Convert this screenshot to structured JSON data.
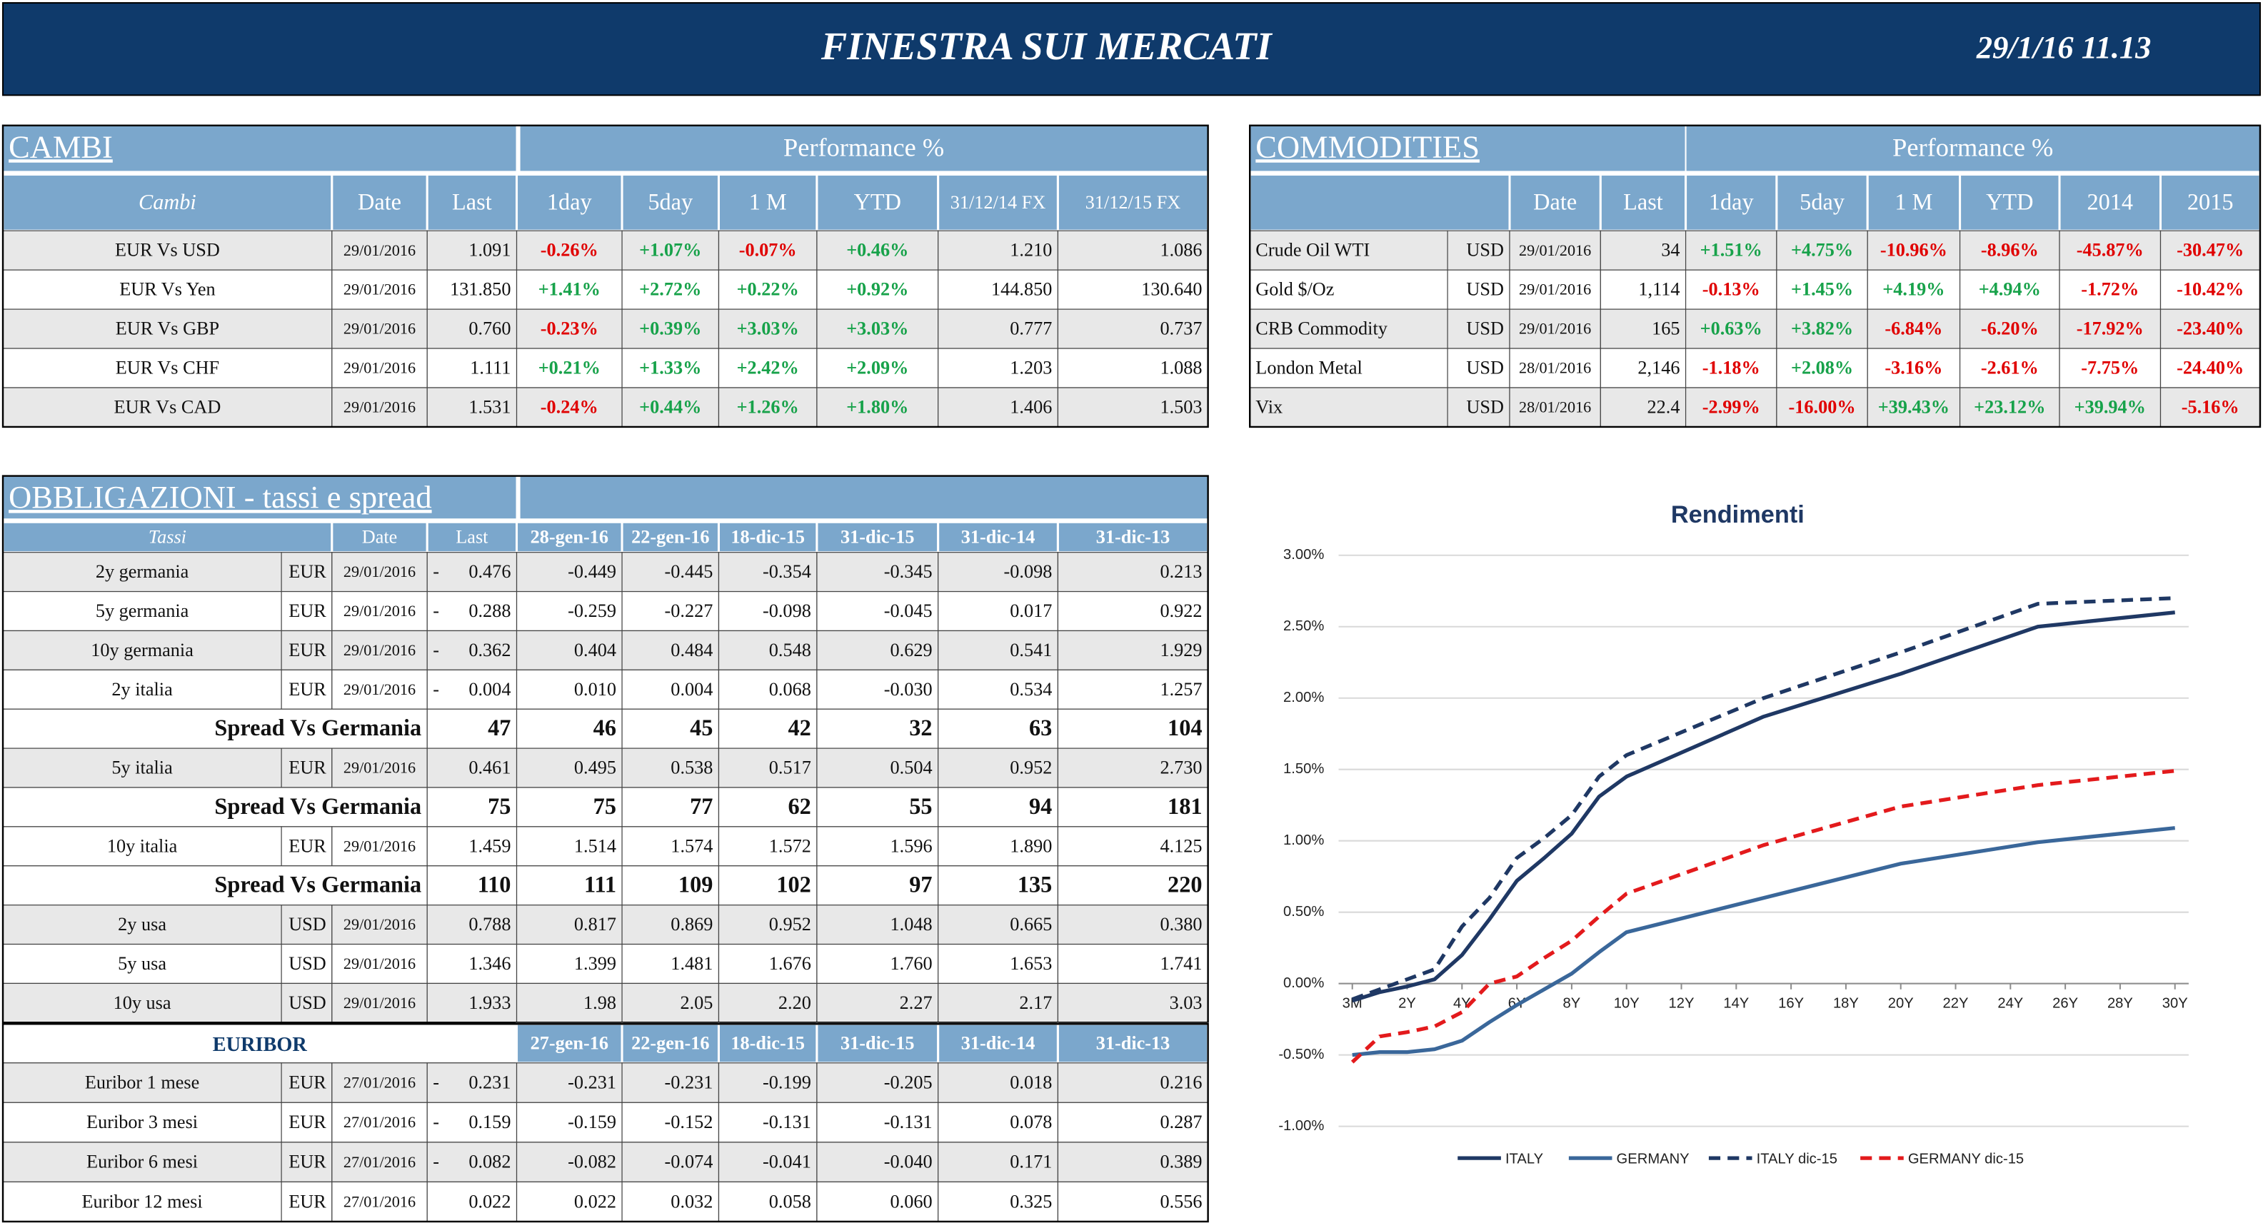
{
  "header": {
    "title": "FINESTRA SUI MERCATI",
    "timestamp": "29/1/16 11.13"
  },
  "cambi": {
    "title": "CAMBI",
    "performance": "Performance  %",
    "columns": [
      "Cambi",
      "Date",
      "Last",
      "1day",
      "5day",
      "1 M",
      "YTD",
      "31/12/14 FX",
      "31/12/15  FX"
    ],
    "rows": [
      [
        "EUR Vs USD",
        "29/01/2016",
        "1.091",
        "-0.26%",
        "+1.07%",
        "-0.07%",
        "+0.46%",
        "1.210",
        "1.086"
      ],
      [
        "EUR Vs Yen",
        "29/01/2016",
        "131.850",
        "+1.41%",
        "+2.72%",
        "+0.22%",
        "+0.92%",
        "144.850",
        "130.640"
      ],
      [
        "EUR Vs GBP",
        "29/01/2016",
        "0.760",
        "-0.23%",
        "+0.39%",
        "+3.03%",
        "+3.03%",
        "0.777",
        "0.737"
      ],
      [
        "EUR Vs CHF",
        "29/01/2016",
        "1.111",
        "+0.21%",
        "+1.33%",
        "+2.42%",
        "+2.09%",
        "1.203",
        "1.088"
      ],
      [
        "EUR Vs CAD",
        "29/01/2016",
        "1.531",
        "-0.24%",
        "+0.44%",
        "+1.26%",
        "+1.80%",
        "1.406",
        "1.503"
      ]
    ]
  },
  "commodities": {
    "title": "COMMODITIES",
    "performance": "Performance  %",
    "columns": [
      "Date",
      "Last",
      "1day",
      "5day",
      "1 M",
      "YTD",
      "2014",
      "2015"
    ],
    "rows": [
      [
        "Crude Oil WTI",
        "USD",
        "29/01/2016",
        "34",
        "+1.51%",
        "+4.75%",
        "-10.96%",
        "-8.96%",
        "-45.87%",
        "-30.47%"
      ],
      [
        "Gold $/Oz",
        "USD",
        "29/01/2016",
        "1,114",
        "-0.13%",
        "+1.45%",
        "+4.19%",
        "+4.94%",
        "-1.72%",
        "-10.42%"
      ],
      [
        "CRB Commodity",
        "USD",
        "29/01/2016",
        "165",
        "+0.63%",
        "+3.82%",
        "-6.84%",
        "-6.20%",
        "-17.92%",
        "-23.40%"
      ],
      [
        "London Metal",
        "USD",
        "28/01/2016",
        "2,146",
        "-1.18%",
        "+2.08%",
        "-3.16%",
        "-2.61%",
        "-7.75%",
        "-24.40%"
      ],
      [
        "Vix",
        "USD",
        "28/01/2016",
        "22.4",
        "-2.99%",
        "-16.00%",
        "+39.43%",
        "+23.12%",
        "+39.94%",
        "-5.16%"
      ]
    ]
  },
  "obbligazioni": {
    "title": "OBBLIGAZIONI - tassi e spread",
    "columns": [
      "Tassi",
      "Date",
      "Last",
      "28-gen-16",
      "22-gen-16",
      "18-dic-15",
      "31-dic-15",
      "31-dic-14",
      "31-dic-13"
    ],
    "rows": [
      {
        "name": "2y germania",
        "currency": "EUR",
        "date": "29/01/2016",
        "sign": "-",
        "last": "0.476",
        "values": [
          "-0.449",
          "-0.445",
          "-0.354",
          "-0.345",
          "-0.098",
          "0.213"
        ]
      },
      {
        "name": "5y germania",
        "currency": "EUR",
        "date": "29/01/2016",
        "sign": "-",
        "last": "0.288",
        "values": [
          "-0.259",
          "-0.227",
          "-0.098",
          "-0.045",
          "0.017",
          "0.922"
        ]
      },
      {
        "name": "10y germania",
        "currency": "EUR",
        "date": "29/01/2016",
        "sign": "-",
        "last": "0.362",
        "values": [
          "0.404",
          "0.484",
          "0.548",
          "0.629",
          "0.541",
          "1.929"
        ]
      },
      {
        "name": "2y italia",
        "currency": "EUR",
        "date": "29/01/2016",
        "sign": "-",
        "last": "0.004",
        "values": [
          "0.010",
          "0.004",
          "0.068",
          "-0.030",
          "0.534",
          "1.257"
        ]
      },
      {
        "label": "Spread Vs Germania",
        "last": "47",
        "values": [
          "46",
          "45",
          "42",
          "32",
          "63",
          "104"
        ]
      },
      {
        "name": "5y italia",
        "currency": "EUR",
        "date": "29/01/2016",
        "last": "0.461",
        "values": [
          "0.495",
          "0.538",
          "0.517",
          "0.504",
          "0.952",
          "2.730"
        ]
      },
      {
        "label": "Spread Vs Germania",
        "last": "75",
        "values": [
          "75",
          "77",
          "62",
          "55",
          "94",
          "181"
        ]
      },
      {
        "name": "10y italia",
        "currency": "EUR",
        "date": "29/01/2016",
        "last": "1.459",
        "values": [
          "1.514",
          "1.574",
          "1.572",
          "1.596",
          "1.890",
          "4.125"
        ]
      },
      {
        "label": "Spread Vs Germania",
        "last": "110",
        "values": [
          "111",
          "109",
          "102",
          "97",
          "135",
          "220"
        ]
      },
      {
        "name": "2y usa",
        "currency": "USD",
        "date": "29/01/2016",
        "last": "0.788",
        "values": [
          "0.817",
          "0.869",
          "0.952",
          "1.048",
          "0.665",
          "0.380"
        ]
      },
      {
        "name": "5y usa",
        "currency": "USD",
        "date": "29/01/2016",
        "last": "1.346",
        "values": [
          "1.399",
          "1.481",
          "1.676",
          "1.760",
          "1.653",
          "1.741"
        ]
      },
      {
        "name": "10y usa",
        "currency": "USD",
        "date": "29/01/2016",
        "last": "1.933",
        "values": [
          "1.98",
          "2.05",
          "2.20",
          "2.27",
          "2.17",
          "3.03"
        ]
      }
    ]
  },
  "euribor": {
    "title": "EURIBOR",
    "columns": [
      "27-gen-16",
      "22-gen-16",
      "18-dic-15",
      "31-dic-15",
      "31-dic-14",
      "31-dic-13"
    ],
    "rows": [
      {
        "name": "Euribor 1 mese",
        "currency": "EUR",
        "date": "27/01/2016",
        "sign": "-",
        "last": "0.231",
        "values": [
          "-0.231",
          "-0.231",
          "-0.199",
          "-0.205",
          "0.018",
          "0.216"
        ]
      },
      {
        "name": "Euribor 3 mesi",
        "currency": "EUR",
        "date": "27/01/2016",
        "sign": "-",
        "last": "0.159",
        "values": [
          "-0.159",
          "-0.152",
          "-0.131",
          "-0.131",
          "0.078",
          "0.287"
        ]
      },
      {
        "name": "Euribor 6 mesi",
        "currency": "EUR",
        "date": "27/01/2016",
        "sign": "-",
        "last": "0.082",
        "values": [
          "-0.082",
          "-0.074",
          "-0.041",
          "-0.040",
          "0.171",
          "0.389"
        ]
      },
      {
        "name": "Euribor 12 mesi",
        "currency": "EUR",
        "date": "27/01/2016",
        "last": "0.022",
        "values": [
          "0.022",
          "0.032",
          "0.058",
          "0.060",
          "0.325",
          "0.556"
        ]
      }
    ]
  },
  "chart": {
    "type": "line",
    "title": "Rendimenti",
    "x": [
      0,
      1,
      2,
      3,
      4,
      5,
      6,
      7,
      8,
      9,
      10,
      15,
      20,
      25,
      30
    ],
    "xlim": [
      -0.5,
      30.5
    ],
    "xticks": [
      {
        "value": 0,
        "label": "3M"
      },
      {
        "value": 2,
        "label": "2Y"
      },
      {
        "value": 4,
        "label": "4Y"
      },
      {
        "value": 6,
        "label": "6Y"
      },
      {
        "value": 8,
        "label": "8Y"
      },
      {
        "value": 10,
        "label": "10Y"
      },
      {
        "value": 12,
        "label": "12Y"
      },
      {
        "value": 14,
        "label": "14Y"
      },
      {
        "value": 16,
        "label": "16Y"
      },
      {
        "value": 18,
        "label": "18Y"
      },
      {
        "value": 20,
        "label": "20Y"
      },
      {
        "value": 22,
        "label": "22Y"
      },
      {
        "value": 24,
        "label": "24Y"
      },
      {
        "value": 26,
        "label": "26Y"
      },
      {
        "value": 28,
        "label": "28Y"
      },
      {
        "value": 30,
        "label": "30Y"
      }
    ],
    "ylim": [
      -1,
      3
    ],
    "yticks": [
      {
        "value": -1,
        "label": "-1.00%"
      },
      {
        "value": -0.5,
        "label": "-0.50%"
      },
      {
        "value": 0,
        "label": "0.00%"
      },
      {
        "value": 0.5,
        "label": "0.50%"
      },
      {
        "value": 1,
        "label": "1.00%"
      },
      {
        "value": 1.5,
        "label": "1.50%"
      },
      {
        "value": 2,
        "label": "2.00%"
      },
      {
        "value": 2.5,
        "label": "2.50%"
      },
      {
        "value": 3,
        "label": "3.00%"
      }
    ],
    "grid": true,
    "series": [
      {
        "name": "ITALY",
        "color": "#1f3864",
        "dashed": false,
        "values": [
          -0.12,
          -0.06,
          -0.02,
          0.03,
          0.2,
          0.45,
          0.72,
          0.88,
          1.05,
          1.31,
          1.45,
          1.87,
          2.17,
          2.5,
          2.6
        ]
      },
      {
        "name": "GERMANY",
        "color": "#3a679a",
        "dashed": false,
        "values": [
          -0.5,
          -0.48,
          -0.48,
          -0.46,
          -0.4,
          -0.27,
          -0.15,
          -0.04,
          0.07,
          0.22,
          0.36,
          0.6,
          0.84,
          0.99,
          1.09
        ]
      },
      {
        "name": "ITALY dic-15",
        "color": "#1f3864",
        "dashed": true,
        "values": [
          -0.11,
          -0.04,
          0.03,
          0.1,
          0.4,
          0.6,
          0.88,
          1.02,
          1.18,
          1.45,
          1.6,
          2.0,
          2.32,
          2.66,
          2.7
        ]
      },
      {
        "name": "GERMANY dic-15",
        "color": "#e31a1c",
        "dashed": true,
        "values": [
          -0.55,
          -0.37,
          -0.34,
          -0.3,
          -0.2,
          0.0,
          0.05,
          0.18,
          0.3,
          0.47,
          0.63,
          0.97,
          1.24,
          1.39,
          1.49
        ]
      }
    ]
  }
}
